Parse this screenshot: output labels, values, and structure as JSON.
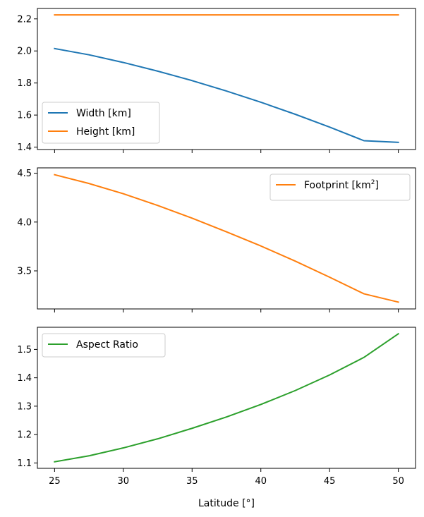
{
  "chart_data": [
    {
      "type": "line",
      "x": [
        25,
        27.5,
        30,
        32.5,
        35,
        37.5,
        40,
        42.5,
        45,
        47.5,
        50
      ],
      "series": [
        {
          "name": "Width [km]",
          "color": "#1f77b4",
          "values": [
            2.015,
            1.976,
            1.928,
            1.874,
            1.815,
            1.75,
            1.68,
            1.605,
            1.525,
            1.44,
            1.43
          ]
        },
        {
          "name": "Height [km]",
          "color": "#ff7f0e",
          "values": [
            2.225,
            2.225,
            2.225,
            2.225,
            2.225,
            2.225,
            2.225,
            2.225,
            2.225,
            2.225,
            2.225
          ]
        }
      ],
      "ylim": [
        1.385,
        2.265
      ],
      "yticks": [
        "1.4",
        "1.6",
        "1.8",
        "2.0",
        "2.2"
      ],
      "xlim": [
        23.75,
        51.25
      ],
      "xticks": [
        "25",
        "30",
        "35",
        "40",
        "45",
        "50"
      ],
      "show_xtick_labels": false,
      "legend": "lower-left"
    },
    {
      "type": "line",
      "x": [
        25,
        27.5,
        30,
        32.5,
        35,
        37.5,
        40,
        42.5,
        45,
        47.5,
        50
      ],
      "series": [
        {
          "name": "Footprint [km",
          "name_sup": "2",
          "name_suffix": "]",
          "color": "#ff7f0e",
          "values": [
            4.485,
            4.395,
            4.29,
            4.17,
            4.04,
            3.9,
            3.755,
            3.6,
            3.435,
            3.265,
            3.18
          ]
        }
      ],
      "ylim": [
        3.11,
        4.555
      ],
      "yticks": [
        "3.5",
        "4.0",
        "4.5"
      ],
      "xlim": [
        23.75,
        51.25
      ],
      "xticks": [
        "25",
        "30",
        "35",
        "40",
        "45",
        "50"
      ],
      "show_xtick_labels": false,
      "legend": "upper-right"
    },
    {
      "type": "line",
      "x": [
        25,
        27.5,
        30,
        32.5,
        35,
        37.5,
        40,
        42.5,
        45,
        47.5,
        50
      ],
      "series": [
        {
          "name": "Aspect Ratio",
          "color": "#2ca02c",
          "values": [
            1.104,
            1.125,
            1.153,
            1.185,
            1.222,
            1.262,
            1.306,
            1.355,
            1.41,
            1.472,
            1.555
          ]
        }
      ],
      "ylim": [
        1.081,
        1.578
      ],
      "yticks": [
        "1.1",
        "1.2",
        "1.3",
        "1.4",
        "1.5"
      ],
      "xlim": [
        23.75,
        51.25
      ],
      "xticks": [
        "25",
        "30",
        "35",
        "40",
        "45",
        "50"
      ],
      "show_xtick_labels": true,
      "xlabel": "Latitude [°]",
      "legend": "upper-left"
    }
  ]
}
